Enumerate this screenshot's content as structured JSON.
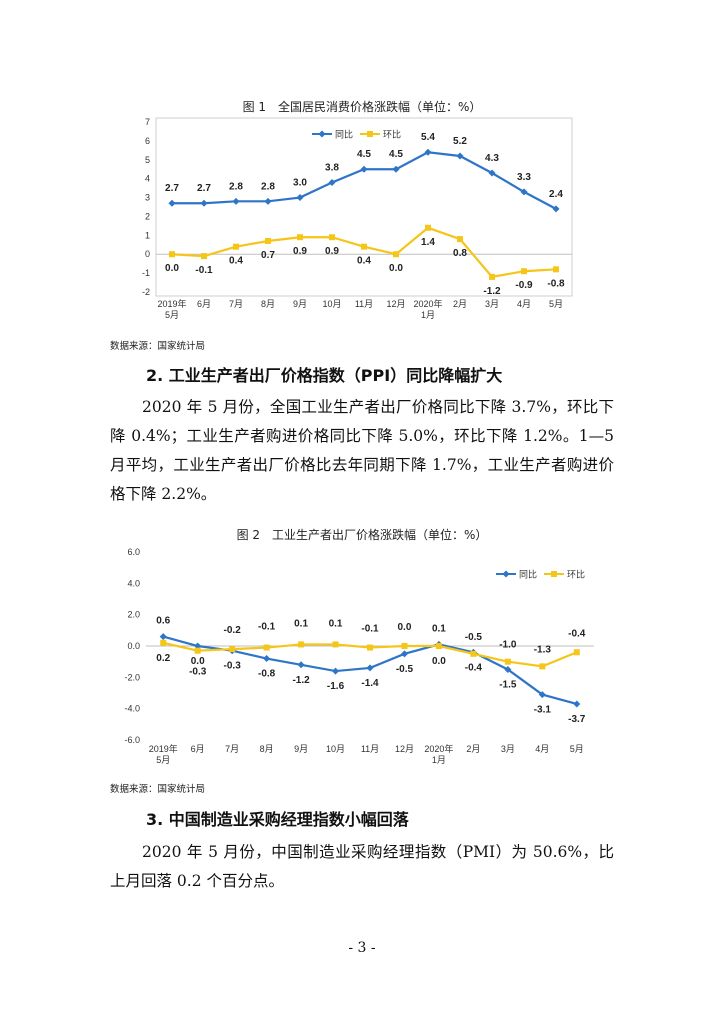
{
  "figure1": {
    "title": "图 1　全国居民消费价格涨跌幅（单位：%）",
    "source": "数据来源：国家统计局"
  },
  "section2": {
    "heading": "2.  工业生产者出厂价格指数（PPI）同比降幅扩大",
    "paragraph": "2020 年 5 月份，全国工业生产者出厂价格同比下降 3.7%，环比下降 0.4%；工业生产者购进价格同比下降 5.0%，环比下降 1.2%。1—5 月平均，工业生产者出厂价格比去年同期下降 1.7%，工业生产者购进价格下降 2.2%。"
  },
  "figure2": {
    "title": "图 2　工业生产者出厂价格涨跌幅（单位：%）",
    "source": "数据来源：国家统计局"
  },
  "section3": {
    "heading": "3.  中国制造业采购经理指数小幅回落",
    "paragraph": "2020 年 5 月份，中国制造业采购经理指数（PMI）为 50.6%，比上月回落 0.2 个百分点。"
  },
  "page_number": "- 3 -",
  "colors": {
    "yoy": "#2e75c9",
    "mom": "#f5c518"
  },
  "chart_data": [
    {
      "type": "line",
      "title": "全国居民消费价格涨跌幅",
      "categories": [
        [
          "2019年",
          "5月"
        ],
        [
          "6月"
        ],
        [
          "7月"
        ],
        [
          "8月"
        ],
        [
          "9月"
        ],
        [
          "10月"
        ],
        [
          "11月"
        ],
        [
          "12月"
        ],
        [
          "2020年",
          "1月"
        ],
        [
          "2月"
        ],
        [
          "3月"
        ],
        [
          "4月"
        ],
        [
          "5月"
        ]
      ],
      "ylim": [
        -2,
        7
      ],
      "yticks": [
        -2,
        -1,
        0,
        1,
        2,
        3,
        4,
        5,
        6,
        7
      ],
      "legend_position": "top-left",
      "series": [
        {
          "name": "同比",
          "values": [
            2.7,
            2.7,
            2.8,
            2.8,
            3.0,
            3.8,
            4.5,
            4.5,
            5.4,
            5.2,
            4.3,
            3.3,
            2.4
          ],
          "labels": [
            "2.7",
            "2.7",
            "2.8",
            "2.8",
            "3.0",
            "3.8",
            "4.5",
            "4.5",
            "5.4",
            "5.2",
            "4.3",
            "3.3",
            "2.4"
          ]
        },
        {
          "name": "环比",
          "values": [
            0.0,
            -0.1,
            0.4,
            0.7,
            0.9,
            0.9,
            0.4,
            0.0,
            1.4,
            0.8,
            -1.2,
            -0.9,
            -0.8
          ],
          "labels": [
            "0.0",
            "-0.1",
            "0.4",
            "0.7",
            "0.9",
            "0.9",
            "0.4",
            "0.0",
            "1.4",
            "0.8",
            "-1.2",
            "-0.9",
            "-0.8"
          ]
        }
      ]
    },
    {
      "type": "line",
      "title": "工业生产者出厂价格涨跌幅",
      "categories": [
        [
          "2019年",
          "5月"
        ],
        [
          "6月"
        ],
        [
          "7月"
        ],
        [
          "8月"
        ],
        [
          "9月"
        ],
        [
          "10月"
        ],
        [
          "11月"
        ],
        [
          "12月"
        ],
        [
          "2020年",
          "1月"
        ],
        [
          "2月"
        ],
        [
          "3月"
        ],
        [
          "4月"
        ],
        [
          "5月"
        ]
      ],
      "ylim": [
        -6,
        6
      ],
      "yticks": [
        -6.0,
        -4.0,
        -2.0,
        0.0,
        2.0,
        4.0,
        6.0
      ],
      "yticklabels": [
        "-6.0",
        "-4.0",
        "-2.0",
        "0.0",
        "2.0",
        "4.0",
        "6.0"
      ],
      "legend_position": "top-right",
      "series": [
        {
          "name": "同比",
          "values": [
            0.6,
            0.0,
            -0.3,
            -0.8,
            -1.2,
            -1.6,
            -1.4,
            -0.5,
            0.1,
            -0.4,
            -1.5,
            -3.1,
            -3.7
          ],
          "labels": [
            "0.6",
            "0.0",
            "-0.3",
            "-0.8",
            "-1.2",
            "-1.6",
            "-1.4",
            "-0.5",
            "0.1",
            "-0.4",
            "-1.5",
            "-3.1",
            "-3.7"
          ]
        },
        {
          "name": "环比",
          "values": [
            0.2,
            -0.3,
            -0.2,
            -0.1,
            0.1,
            0.1,
            -0.1,
            0.0,
            0.0,
            -0.5,
            -1.0,
            -1.3,
            -0.4
          ],
          "labels": [
            "0.2",
            "-0.3",
            "-0.2",
            "-0.1",
            "0.1",
            "0.1",
            "-0.1",
            "0.0",
            "0.0",
            "-0.5",
            "-1.0",
            "-1.3",
            "-0.4"
          ]
        }
      ]
    }
  ]
}
